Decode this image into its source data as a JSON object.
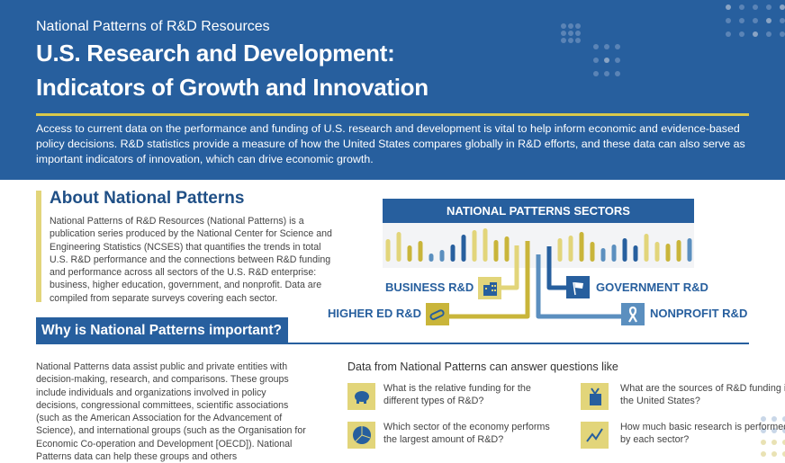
{
  "header": {
    "kicker": "National Patterns of R&D Resources",
    "title_line1": "U.S. Research and Development:",
    "title_line2": "Indicators of Growth and Innovation",
    "intro": "Access to current data on the performance and funding of U.S. research and development is vital to help inform economic and evidence-based policy decisions. R&D statistics provide a measure of how the United States compares globally in R&D efforts, and these data can also serve as important indicators of innovation, which can drive economic growth."
  },
  "about": {
    "heading": "About National Patterns",
    "body": "National Patterns of R&D Resources (National Patterns) is a publication series produced by the National Center for Science and Engineering Statistics (NCSES) that quantifies the trends in total U.S. R&D performance and the connections between R&D funding and performance across all sectors of the U.S. R&D enterprise: business, higher education, government, and nonprofit. Data are compiled from separate surveys covering each sector."
  },
  "sectors": {
    "heading": "NATIONAL PATTERNS SECTORS",
    "business": "BUSINESS R&D",
    "higher_ed": "HIGHER ED R&D",
    "government": "GOVERNMENT R&D",
    "nonprofit": "NONPROFIT R&D"
  },
  "why": {
    "heading": "Why is National Patterns important?",
    "body": "National Patterns data assist public and private entities with decision-making, research, and comparisons. These groups include individuals and organizations involved in policy decisions, congressional committees, scientific associations (such as the American Association for the Advancement of Science), and international groups (such as the Organisation for Economic Co-operation and Development [OECD]). National Patterns data can help these groups and others"
  },
  "questions": {
    "heading": "Data from National Patterns can answer questions like",
    "items": [
      {
        "icon": "piggy-bank-icon",
        "text": "What is the relative funding for the different types of R&D?"
      },
      {
        "icon": "gift-box-icon",
        "text": "What are the sources of R&D funding in the United States?"
      },
      {
        "icon": "pie-chart-icon",
        "text": "Which sector of the economy performs the largest amount of R&D?"
      },
      {
        "icon": "line-chart-icon",
        "text": "How much basic research is performed by each sector?"
      }
    ]
  },
  "colors": {
    "blue": "#275f9e",
    "yellow": "#e2d57a",
    "gold": "#c9b53a",
    "light_blue": "#5b8fbf"
  }
}
